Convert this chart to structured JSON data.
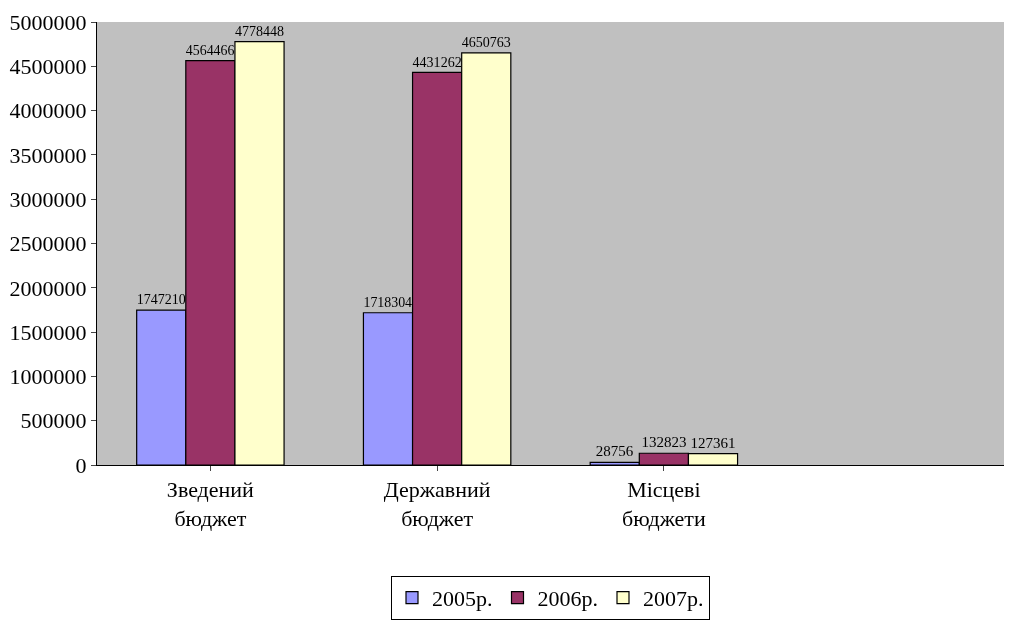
{
  "chart_data": {
    "type": "bar",
    "categories": [
      "Зведений\nбюджет",
      "Державний\nбюджет",
      "Місцеві\nбюджети",
      null
    ],
    "series": [
      {
        "name": "2005р.",
        "color": "#9999ff",
        "values": [
          1747210,
          1718304,
          28756,
          null
        ]
      },
      {
        "name": "2006р.",
        "color": "#993366",
        "values": [
          4564466,
          4431262,
          132823,
          null
        ]
      },
      {
        "name": "2007р.",
        "color": "#ffffcc",
        "values": [
          4778448,
          4650763,
          127361,
          null
        ]
      }
    ],
    "ylim": [
      0,
      5000000
    ],
    "yticks": [
      0,
      500000,
      1000000,
      1500000,
      2000000,
      2500000,
      3000000,
      3500000,
      4000000,
      4500000,
      5000000
    ],
    "data_labels": true,
    "legend": "bottom",
    "grid": false
  }
}
